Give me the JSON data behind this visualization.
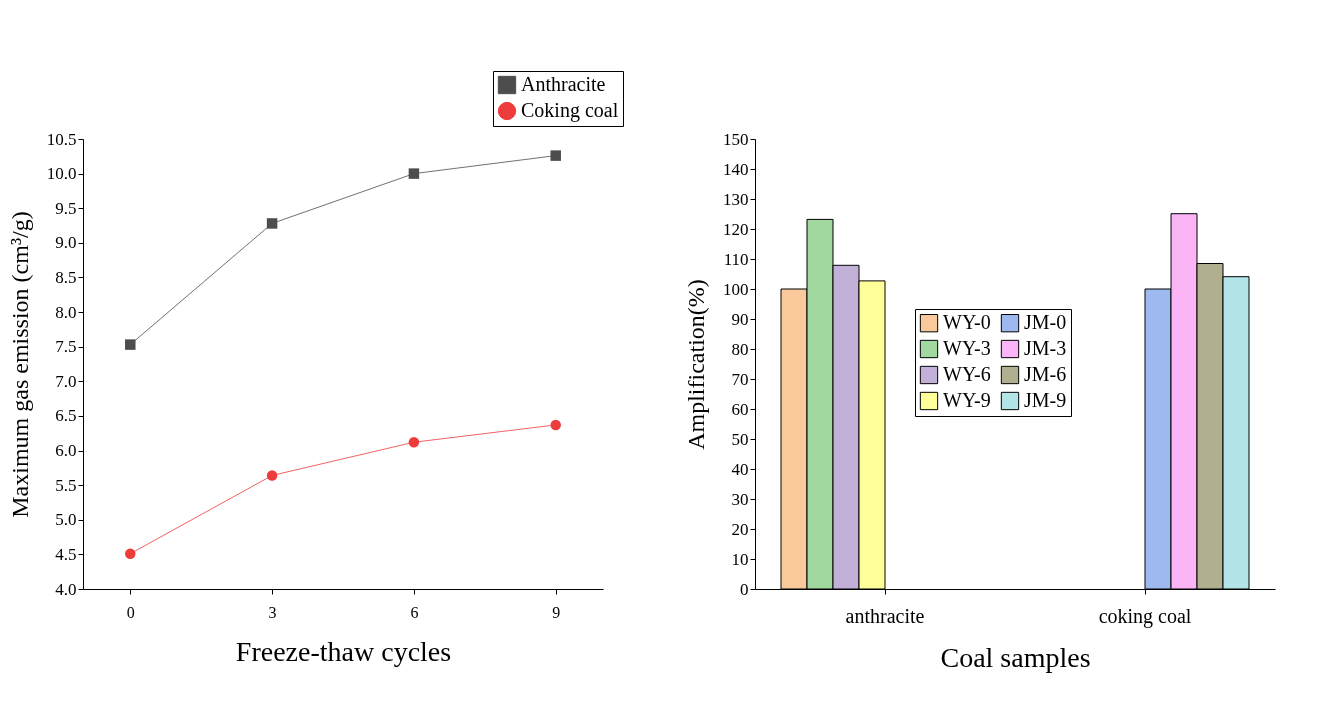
{
  "chart_data": [
    {
      "type": "line",
      "xlabel": "Freeze-thaw cycles",
      "ylabel": "Maximum gas emission (cm³/g)",
      "x": [
        0,
        3,
        6,
        9
      ],
      "xlim": [
        -1,
        10
      ],
      "xticks": [
        0,
        3,
        6,
        9
      ],
      "ylim": [
        4,
        10.5
      ],
      "yticks": [
        {
          "value": 4,
          "label": "4.0"
        },
        {
          "value": 4.5,
          "label": "4.5"
        },
        {
          "value": 5,
          "label": "5.0"
        },
        {
          "value": 5.5,
          "label": "5.5"
        },
        {
          "value": 6,
          "label": "6.0"
        },
        {
          "value": 6.5,
          "label": "6.5"
        },
        {
          "value": 7,
          "label": "7.0"
        },
        {
          "value": 7.5,
          "label": "7.5"
        },
        {
          "value": 8,
          "label": "8.0"
        },
        {
          "value": 8.5,
          "label": "8.5"
        },
        {
          "value": 9,
          "label": "9.0"
        },
        {
          "value": 9.5,
          "label": "9.5"
        },
        {
          "value": 10,
          "label": "10.0"
        },
        {
          "value": 10.5,
          "label": "10.5"
        }
      ],
      "legend": "top right",
      "grid": false,
      "series": [
        {
          "name": "Anthracite",
          "color": "#4d4d4d",
          "marker": "square",
          "values": [
            7.53,
            9.28,
            10.0,
            10.26
          ]
        },
        {
          "name": "Coking coal",
          "color": "#ee3b3b",
          "marker": "circle",
          "values": [
            4.51,
            5.64,
            6.12,
            6.37
          ]
        }
      ]
    },
    {
      "type": "bar",
      "xlabel": "Coal samples",
      "ylabel": "Amplification(%)",
      "categories": [
        "anthracite",
        "coking coal"
      ],
      "ylim": [
        0,
        150
      ],
      "yticks": [
        0,
        10,
        20,
        30,
        40,
        50,
        60,
        70,
        80,
        90,
        100,
        110,
        120,
        130,
        140,
        150
      ],
      "legend": "left",
      "grid": false,
      "series": [
        {
          "name": "WY-0",
          "color": "#f9c89b",
          "values": [
            100,
            null
          ]
        },
        {
          "name": "WY-3",
          "color": "#a0d8a0",
          "values": [
            123.2,
            null
          ]
        },
        {
          "name": "WY-6",
          "color": "#c3b0d8",
          "values": [
            107.9,
            null
          ]
        },
        {
          "name": "WY-9",
          "color": "#ffff99",
          "values": [
            102.7,
            null
          ]
        },
        {
          "name": "JM-0",
          "color": "#9db9f0",
          "values": [
            null,
            100
          ]
        },
        {
          "name": "JM-3",
          "color": "#fbb4f5",
          "values": [
            null,
            125.1
          ]
        },
        {
          "name": "JM-6",
          "color": "#b0b090",
          "values": [
            null,
            108.5
          ]
        },
        {
          "name": "JM-9",
          "color": "#b3e5e8",
          "values": [
            null,
            104.1
          ]
        }
      ]
    }
  ]
}
